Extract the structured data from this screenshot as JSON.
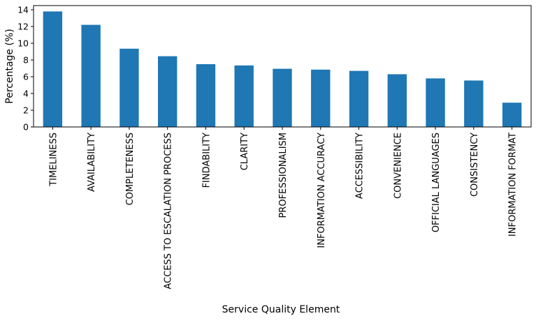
{
  "chart_data": {
    "type": "bar",
    "title": "",
    "xlabel": "Service Quality Element",
    "ylabel": "Percentage (%)",
    "ylim": [
      0,
      14.5
    ],
    "yticks": [
      0,
      2,
      4,
      6,
      8,
      10,
      12,
      14
    ],
    "grid": false,
    "legend": "none",
    "bar_color": "#1f77b4",
    "categories": [
      "TIMELINESS",
      "AVAILABILITY",
      "COMPLETENESS",
      "ACCESS TO ESCALATION PROCESS",
      "FINDABILITY",
      "CLARITY",
      "PROFESSIONALISM",
      "INFORMATION ACCURACY",
      "ACCESSIBILITY",
      "CONVENIENCE",
      "OFFICIAL LANGUAGES",
      "CONSISTENCY",
      "INFORMATION FORMAT"
    ],
    "values": [
      13.8,
      12.2,
      9.35,
      8.45,
      7.5,
      7.35,
      6.95,
      6.85,
      6.7,
      6.3,
      5.8,
      5.55,
      2.9
    ]
  }
}
